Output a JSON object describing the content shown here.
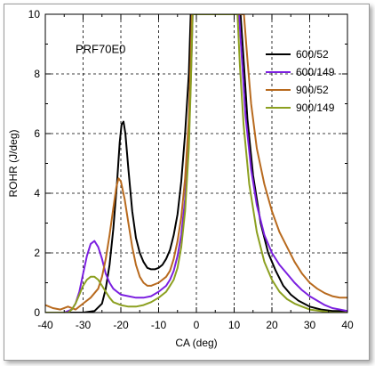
{
  "chart_data": {
    "type": "line",
    "title": "",
    "annotation": "PRF70E0",
    "xlabel": "CA (deg)",
    "ylabel": "ROHR (J/deg)",
    "xlim": [
      -40,
      40
    ],
    "ylim": [
      0,
      10
    ],
    "xticks": [
      -40,
      -30,
      -20,
      -10,
      0,
      10,
      20,
      30,
      40
    ],
    "yticks": [
      0,
      2,
      4,
      6,
      8,
      10
    ],
    "grid": true,
    "legend_position": "top-right",
    "series": [
      {
        "name": "600/52",
        "color": "#000000",
        "points": [
          [
            -40,
            0
          ],
          [
            -30,
            0
          ],
          [
            -27,
            0.05
          ],
          [
            -25,
            0.3
          ],
          [
            -24,
            0.8
          ],
          [
            -23,
            1.6
          ],
          [
            -22,
            2.8
          ],
          [
            -21,
            4.4
          ],
          [
            -20.3,
            5.7
          ],
          [
            -19.8,
            6.3
          ],
          [
            -19.3,
            6.4
          ],
          [
            -18.8,
            6.0
          ],
          [
            -18,
            4.8
          ],
          [
            -17,
            3.4
          ],
          [
            -16,
            2.5
          ],
          [
            -15,
            2.0
          ],
          [
            -14,
            1.7
          ],
          [
            -13,
            1.5
          ],
          [
            -12,
            1.45
          ],
          [
            -11,
            1.45
          ],
          [
            -10,
            1.5
          ],
          [
            -9,
            1.6
          ],
          [
            -8,
            1.8
          ],
          [
            -7,
            2.1
          ],
          [
            -6,
            2.6
          ],
          [
            -5,
            3.3
          ],
          [
            -4,
            4.4
          ],
          [
            -3,
            6.0
          ],
          [
            -2,
            8.0
          ],
          [
            -1.5,
            10
          ],
          [
            11.7,
            10
          ],
          [
            12.5,
            8.5
          ],
          [
            13.5,
            6.5
          ],
          [
            15,
            4.6
          ],
          [
            17,
            3.0
          ],
          [
            19,
            2.0
          ],
          [
            21,
            1.4
          ],
          [
            23,
            0.9
          ],
          [
            25,
            0.6
          ],
          [
            27,
            0.4
          ],
          [
            30,
            0.2
          ],
          [
            33,
            0.1
          ],
          [
            36,
            0.05
          ],
          [
            40,
            0.05
          ]
        ]
      },
      {
        "name": "600/149",
        "color": "#7b1fe0",
        "points": [
          [
            -40,
            0
          ],
          [
            -35,
            0
          ],
          [
            -33,
            0.1
          ],
          [
            -32,
            0.3
          ],
          [
            -31,
            0.7
          ],
          [
            -30,
            1.3
          ],
          [
            -29,
            1.9
          ],
          [
            -28,
            2.3
          ],
          [
            -27,
            2.4
          ],
          [
            -26,
            2.2
          ],
          [
            -25,
            1.8
          ],
          [
            -24,
            1.3
          ],
          [
            -23,
            1.0
          ],
          [
            -22,
            0.8
          ],
          [
            -21,
            0.7
          ],
          [
            -20,
            0.6
          ],
          [
            -18,
            0.55
          ],
          [
            -16,
            0.5
          ],
          [
            -14,
            0.5
          ],
          [
            -12,
            0.55
          ],
          [
            -10,
            0.7
          ],
          [
            -8,
            0.9
          ],
          [
            -7,
            1.1
          ],
          [
            -6,
            1.4
          ],
          [
            -5,
            1.9
          ],
          [
            -4,
            2.6
          ],
          [
            -3,
            3.8
          ],
          [
            -2,
            5.8
          ],
          [
            -1.3,
            8.5
          ],
          [
            -1,
            10
          ],
          [
            11.3,
            10
          ],
          [
            12,
            8.6
          ],
          [
            13,
            6.6
          ],
          [
            14.5,
            4.8
          ],
          [
            16,
            3.6
          ],
          [
            18,
            2.6
          ],
          [
            20,
            2.0
          ],
          [
            22,
            1.6
          ],
          [
            24,
            1.3
          ],
          [
            26,
            1.0
          ],
          [
            28,
            0.75
          ],
          [
            30,
            0.55
          ],
          [
            32,
            0.4
          ],
          [
            34,
            0.25
          ],
          [
            36,
            0.15
          ],
          [
            38,
            0.1
          ],
          [
            40,
            0.05
          ]
        ]
      },
      {
        "name": "900/52",
        "color": "#b86a1e",
        "points": [
          [
            -40,
            0.25
          ],
          [
            -38,
            0.15
          ],
          [
            -36,
            0.1
          ],
          [
            -34,
            0.2
          ],
          [
            -32,
            0.1
          ],
          [
            -30,
            0.3
          ],
          [
            -28,
            0.5
          ],
          [
            -26,
            0.8
          ],
          [
            -25,
            1.2
          ],
          [
            -24,
            1.8
          ],
          [
            -23,
            2.6
          ],
          [
            -22,
            3.5
          ],
          [
            -21.2,
            4.2
          ],
          [
            -20.6,
            4.5
          ],
          [
            -20,
            4.4
          ],
          [
            -19,
            3.8
          ],
          [
            -18,
            3.0
          ],
          [
            -17,
            2.2
          ],
          [
            -16,
            1.6
          ],
          [
            -15,
            1.2
          ],
          [
            -14,
            1.0
          ],
          [
            -13,
            0.9
          ],
          [
            -12,
            0.9
          ],
          [
            -10,
            1.0
          ],
          [
            -8,
            1.2
          ],
          [
            -7,
            1.4
          ],
          [
            -6,
            1.8
          ],
          [
            -5,
            2.4
          ],
          [
            -4,
            3.2
          ],
          [
            -3,
            4.5
          ],
          [
            -2,
            6.5
          ],
          [
            -1.5,
            8.5
          ],
          [
            -1.2,
            10
          ],
          [
            12.6,
            10
          ],
          [
            13.5,
            8.5
          ],
          [
            14.5,
            7.0
          ],
          [
            16,
            5.5
          ],
          [
            18,
            4.3
          ],
          [
            20,
            3.4
          ],
          [
            22,
            2.7
          ],
          [
            24,
            2.2
          ],
          [
            26,
            1.7
          ],
          [
            28,
            1.3
          ],
          [
            30,
            1.0
          ],
          [
            32,
            0.8
          ],
          [
            34,
            0.65
          ],
          [
            36,
            0.55
          ],
          [
            38,
            0.5
          ],
          [
            40,
            0.5
          ]
        ]
      },
      {
        "name": "900/149",
        "color": "#8ca020",
        "points": [
          [
            -40,
            0
          ],
          [
            -34,
            0
          ],
          [
            -33,
            0.1
          ],
          [
            -32,
            0.3
          ],
          [
            -31,
            0.6
          ],
          [
            -30,
            0.9
          ],
          [
            -29,
            1.1
          ],
          [
            -28,
            1.2
          ],
          [
            -27,
            1.2
          ],
          [
            -26,
            1.1
          ],
          [
            -25,
            0.9
          ],
          [
            -24,
            0.7
          ],
          [
            -23,
            0.5
          ],
          [
            -22,
            0.35
          ],
          [
            -20,
            0.25
          ],
          [
            -18,
            0.2
          ],
          [
            -16,
            0.2
          ],
          [
            -14,
            0.25
          ],
          [
            -12,
            0.35
          ],
          [
            -10,
            0.5
          ],
          [
            -8,
            0.7
          ],
          [
            -7,
            0.9
          ],
          [
            -6,
            1.1
          ],
          [
            -5,
            1.5
          ],
          [
            -4,
            2.2
          ],
          [
            -3,
            3.4
          ],
          [
            -2,
            5.5
          ],
          [
            -1.5,
            7.5
          ],
          [
            -1,
            10
          ],
          [
            10.9,
            10
          ],
          [
            11.5,
            8.3
          ],
          [
            12.5,
            6.3
          ],
          [
            14,
            4.3
          ],
          [
            16,
            2.7
          ],
          [
            18,
            1.7
          ],
          [
            20,
            1.1
          ],
          [
            22,
            0.7
          ],
          [
            24,
            0.45
          ],
          [
            26,
            0.3
          ],
          [
            28,
            0.2
          ],
          [
            30,
            0.1
          ],
          [
            33,
            0.05
          ],
          [
            36,
            0
          ],
          [
            40,
            0
          ]
        ]
      }
    ]
  }
}
